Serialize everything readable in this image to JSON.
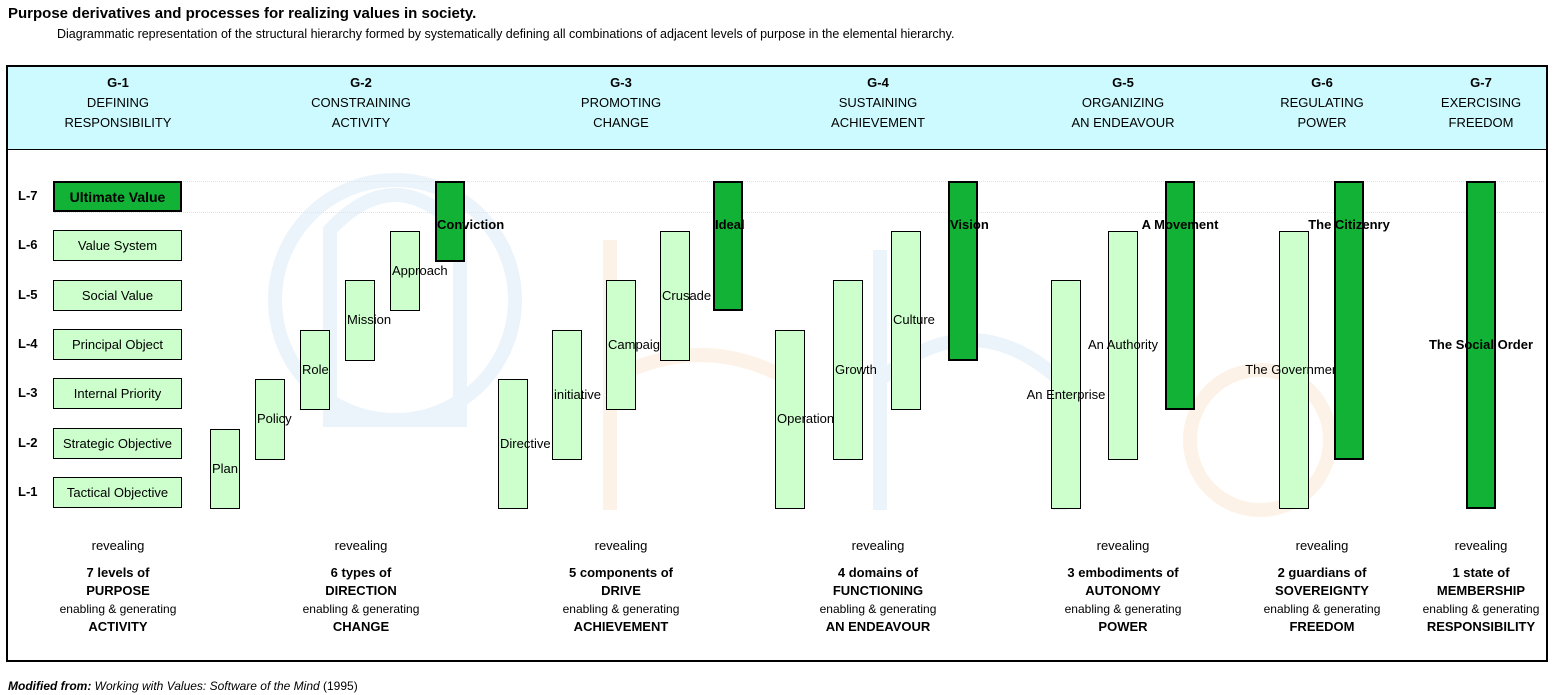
{
  "title": "Purpose derivatives and processes for realizing values in society.",
  "subtitle": "Diagrammatic representation of the structural hierarchy formed by systematically defining all combinations of adjacent levels of purpose in the elemental hierarchy.",
  "columns": [
    {
      "id": "G-1",
      "line1": "DEFINING",
      "line2": "RESPONSIBILITY"
    },
    {
      "id": "G-2",
      "line1": "CONSTRAINING",
      "line2": "ACTIVITY"
    },
    {
      "id": "G-3",
      "line1": "PROMOTING",
      "line2": "CHANGE"
    },
    {
      "id": "G-4",
      "line1": "SUSTAINING",
      "line2": "ACHIEVEMENT"
    },
    {
      "id": "G-5",
      "line1": "ORGANIZING",
      "line2": "AN ENDEAVOUR"
    },
    {
      "id": "G-6",
      "line1": "REGULATING",
      "line2": "POWER"
    },
    {
      "id": "G-7",
      "line1": "EXERCISING",
      "line2": "FREEDOM"
    }
  ],
  "levels": [
    "L-7",
    "L-6",
    "L-5",
    "L-4",
    "L-3",
    "L-2",
    "L-1"
  ],
  "level_boxes": [
    "Ultimate Value",
    "Value System",
    "Social Value",
    "Principal Object",
    "Internal Priority",
    "Strategic Objective",
    "Tactical Objective"
  ],
  "bars": [
    {
      "label": "Plan",
      "low": 1,
      "high": 2,
      "dark": false
    },
    {
      "label": "Policy",
      "low": 2,
      "high": 3,
      "dark": false
    },
    {
      "label": "Role",
      "low": 3,
      "high": 4,
      "dark": false
    },
    {
      "label": "Mission",
      "low": 4,
      "high": 5,
      "dark": false
    },
    {
      "label": "Approach",
      "low": 5,
      "high": 6,
      "dark": false
    },
    {
      "label": "Conviction",
      "low": 6,
      "high": 7,
      "dark": true
    },
    {
      "label": "Directive",
      "low": 1,
      "high": 3,
      "dark": false
    },
    {
      "label": "initiative",
      "low": 2,
      "high": 4,
      "dark": false
    },
    {
      "label": "Campaign",
      "low": 3,
      "high": 5,
      "dark": false
    },
    {
      "label": "Crusade",
      "low": 4,
      "high": 6,
      "dark": false
    },
    {
      "label": "Ideal",
      "low": 5,
      "high": 7,
      "dark": true
    },
    {
      "label": "Operation",
      "low": 1,
      "high": 4,
      "dark": false
    },
    {
      "label": "Growth",
      "low": 2,
      "high": 5,
      "dark": false
    },
    {
      "label": "Culture",
      "low": 3,
      "high": 6,
      "dark": false
    },
    {
      "label": "Vision",
      "low": 4,
      "high": 7,
      "dark": true
    },
    {
      "label": "An Enterprise",
      "low": 1,
      "high": 5,
      "dark": false
    },
    {
      "label": "An Authority",
      "low": 2,
      "high": 6,
      "dark": false
    },
    {
      "label": "A Movement",
      "low": 3,
      "high": 7,
      "dark": true
    },
    {
      "label": "The Government",
      "low": 1,
      "high": 6,
      "dark": false
    },
    {
      "label": "The Citizenry",
      "low": 2,
      "high": 7,
      "dark": true
    },
    {
      "label": "The Social Order",
      "low": 1,
      "high": 7,
      "dark": true
    }
  ],
  "footers": [
    {
      "reveal": "revealing",
      "count": "7 levels of",
      "noun": "PURPOSE",
      "mid": "enabling & generating",
      "result": "ACTIVITY"
    },
    {
      "reveal": "revealing",
      "count": "6 types of",
      "noun": "DIRECTION",
      "mid": "enabling & generating",
      "result": "CHANGE"
    },
    {
      "reveal": "revealing",
      "count": "5 components of",
      "noun": "DRIVE",
      "mid": "enabling & generating",
      "result": "ACHIEVEMENT"
    },
    {
      "reveal": "revealing",
      "count": "4 domains of",
      "noun": "FUNCTIONING",
      "mid": "enabling & generating",
      "result": "AN ENDEAVOUR"
    },
    {
      "reveal": "revealing",
      "count": "3 embodiments of",
      "noun": "AUTONOMY",
      "mid": "enabling & generating",
      "result": "POWER"
    },
    {
      "reveal": "revealing",
      "count": "2 guardians of",
      "noun": "SOVEREIGNTY",
      "mid": "enabling & generating",
      "result": "FREEDOM"
    },
    {
      "reveal": "revealing",
      "count": "1 state of",
      "noun": "MEMBERSHIP",
      "mid": "enabling & generating",
      "result": "RESPONSIBILITY"
    }
  ],
  "source": {
    "prefix": "Modified from:",
    "work": "Working with Values: Software of the Mind",
    "year": " (1995)"
  },
  "colors": {
    "header_band": "#ccfaff",
    "light_bar": "#ccffcc",
    "dark_bar": "#11b235"
  }
}
